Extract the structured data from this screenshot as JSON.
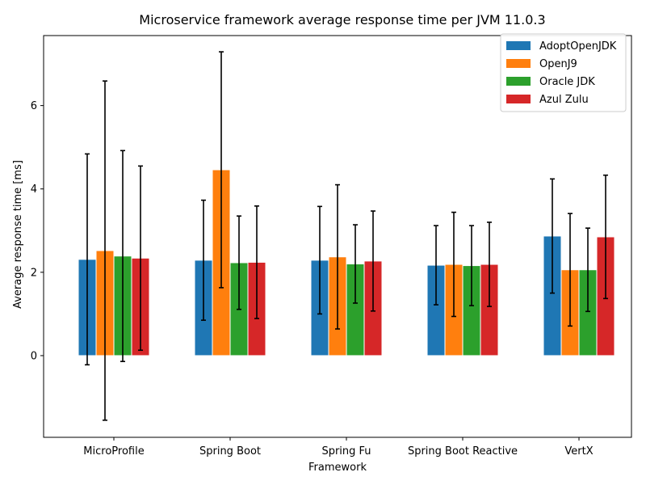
{
  "chart_data": {
    "type": "bar",
    "title": "Microservice framework average response time per JVM 11.0.3",
    "xlabel": "Framework",
    "ylabel": "Average response time [ms]",
    "categories": [
      "MicroProfile",
      "Spring Boot",
      "Spring Fu",
      "Spring Boot Reactive",
      "VertX"
    ],
    "ylim": [
      -1.96,
      7.68
    ],
    "yticks": [
      0,
      2,
      4,
      6
    ],
    "legend_position": "top-right",
    "grid": false,
    "series": [
      {
        "name": "AdoptOpenJDK",
        "color": "#1f77b4",
        "values": [
          2.31,
          2.29,
          2.29,
          2.17,
          2.87
        ],
        "errors": [
          2.53,
          1.44,
          1.29,
          0.95,
          1.37
        ]
      },
      {
        "name": "OpenJ9",
        "color": "#ff7f0e",
        "values": [
          2.52,
          4.46,
          2.37,
          2.19,
          2.06
        ],
        "errors": [
          4.07,
          2.83,
          1.73,
          1.25,
          1.35
        ]
      },
      {
        "name": "Oracle JDK",
        "color": "#2ca02c",
        "values": [
          2.39,
          2.23,
          2.2,
          2.16,
          2.06
        ],
        "errors": [
          2.53,
          1.12,
          0.94,
          0.96,
          1.0
        ]
      },
      {
        "name": "Azul Zulu",
        "color": "#d62728",
        "values": [
          2.34,
          2.24,
          2.27,
          2.19,
          2.85
        ],
        "errors": [
          2.21,
          1.35,
          1.2,
          1.01,
          1.48
        ]
      }
    ]
  }
}
